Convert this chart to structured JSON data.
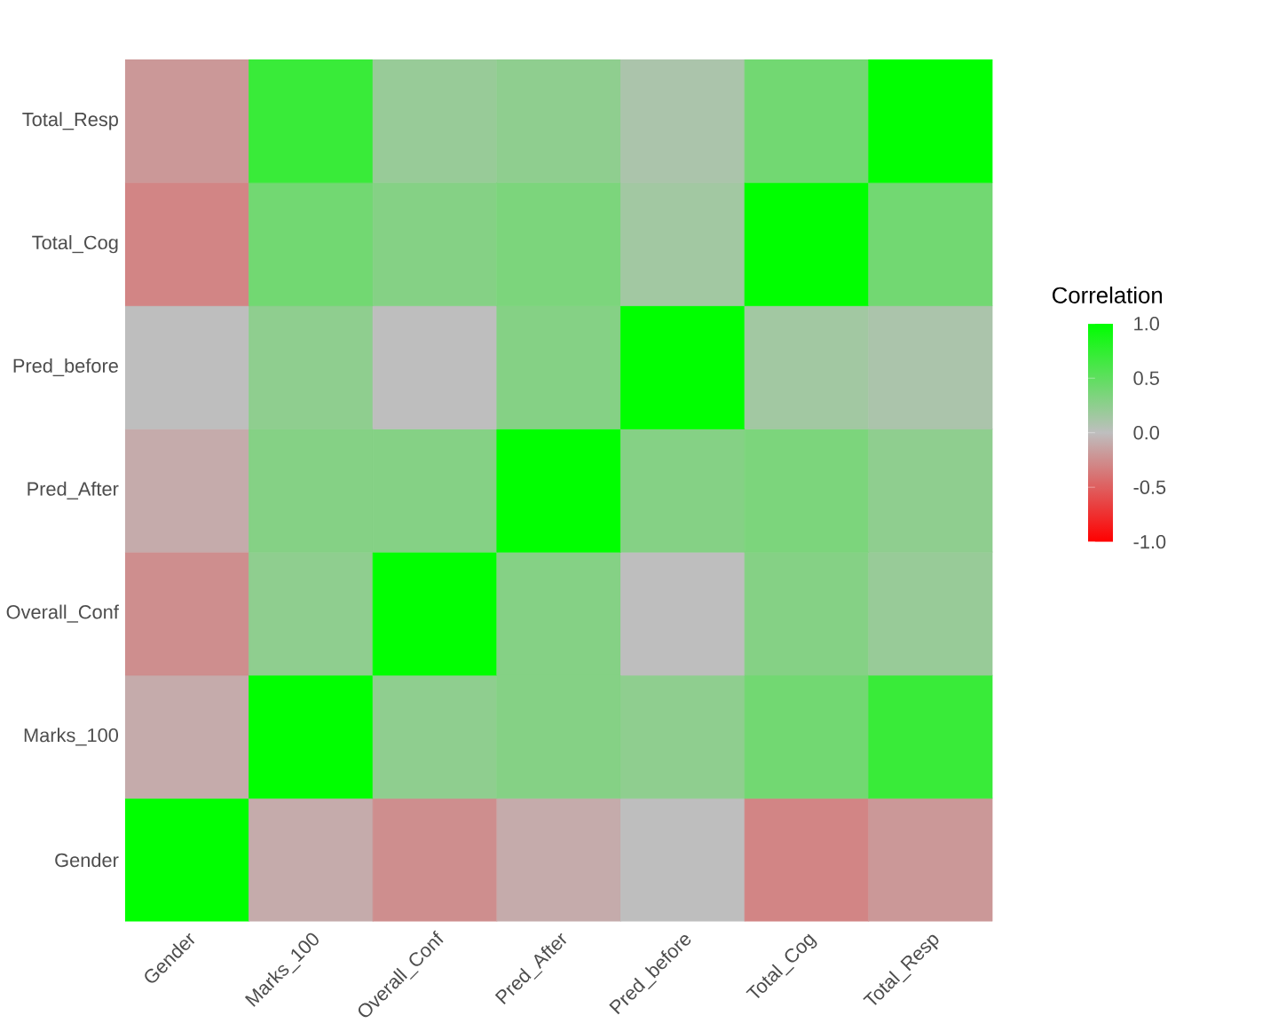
{
  "chart_data": {
    "type": "heatmap",
    "categories": [
      "Gender",
      "Marks_100",
      "Overall_Conf",
      "Pred_After",
      "Pred_before",
      "Total_Cog",
      "Total_Resp"
    ],
    "y_categories": [
      "Total_Resp",
      "Total_Cog",
      "Pred_before",
      "Pred_After",
      "Overall_Conf",
      "Marks_100",
      "Gender"
    ],
    "cells": [
      [
        -0.2,
        0.7,
        0.2,
        0.25,
        0.1,
        0.4,
        1.0
      ],
      [
        -0.3,
        0.4,
        0.3,
        0.35,
        0.15,
        1.0,
        0.4
      ],
      [
        0.0,
        0.25,
        0.0,
        0.3,
        1.0,
        0.15,
        0.1
      ],
      [
        -0.1,
        0.3,
        0.3,
        1.0,
        0.3,
        0.35,
        0.25
      ],
      [
        -0.25,
        0.25,
        1.0,
        0.3,
        0.0,
        0.3,
        0.2
      ],
      [
        -0.1,
        1.0,
        0.25,
        0.3,
        0.25,
        0.4,
        0.7
      ],
      [
        1.0,
        -0.1,
        -0.25,
        -0.1,
        0.0,
        -0.3,
        -0.2
      ]
    ],
    "clabel": "Correlation",
    "clim": [
      -1,
      1
    ],
    "cticks": [
      {
        "value": -1,
        "label": "-1.0"
      },
      {
        "value": -0.5,
        "label": "-0.5"
      },
      {
        "value": 0,
        "label": "0.0"
      },
      {
        "value": 0.5,
        "label": "0.5"
      },
      {
        "value": 1,
        "label": "1.0"
      }
    ]
  }
}
